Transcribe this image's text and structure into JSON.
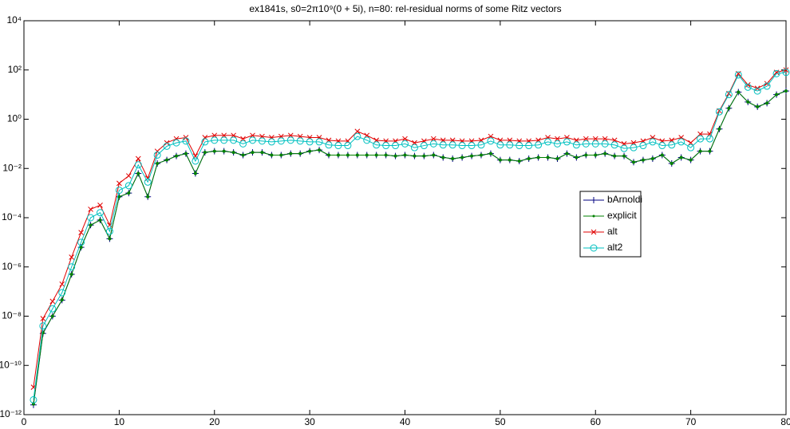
{
  "chart_data": {
    "type": "line",
    "title": "ex1841s, s0=2π10⁹(0 + 5i), n=80:  rel-residual norms of some Ritz vectors",
    "x": [
      1,
      2,
      3,
      4,
      5,
      6,
      7,
      8,
      9,
      10,
      11,
      12,
      13,
      14,
      15,
      16,
      17,
      18,
      19,
      20,
      21,
      22,
      23,
      24,
      25,
      26,
      27,
      28,
      29,
      30,
      31,
      32,
      33,
      34,
      35,
      36,
      37,
      38,
      39,
      40,
      41,
      42,
      43,
      44,
      45,
      46,
      47,
      48,
      49,
      50,
      51,
      52,
      53,
      54,
      55,
      56,
      57,
      58,
      59,
      60,
      61,
      62,
      63,
      64,
      65,
      66,
      67,
      68,
      69,
      70,
      71,
      72,
      73,
      74,
      75,
      76,
      77,
      78,
      79,
      80
    ],
    "xlim": [
      0,
      80
    ],
    "xticks": [
      0,
      10,
      20,
      30,
      40,
      50,
      60,
      70,
      80
    ],
    "ylim": [
      1e-12,
      10000
    ],
    "log_scale_y": true,
    "yticks": [
      {
        "value": 1e-12,
        "label": "10⁻¹²"
      },
      {
        "value": 1e-10,
        "label": "10⁻¹⁰"
      },
      {
        "value": 1e-08,
        "label": "10⁻⁸"
      },
      {
        "value": 1e-06,
        "label": "10⁻⁶"
      },
      {
        "value": 0.0001,
        "label": "10⁻⁴"
      },
      {
        "value": 0.01,
        "label": "10⁻²"
      },
      {
        "value": 1,
        "label": "10⁰"
      },
      {
        "value": 100,
        "label": "10²"
      },
      {
        "value": 10000,
        "label": "10⁴"
      }
    ],
    "legend": "right",
    "series": [
      {
        "name": "bArnoldi",
        "color": "#000080",
        "marker": "plus",
        "values": [
          2.5e-12,
          2e-09,
          1e-08,
          4.5e-08,
          5e-07,
          6.3e-06,
          5e-05,
          8e-05,
          1.4e-05,
          0.00071,
          0.001,
          0.0063,
          0.00071,
          0.016,
          0.022,
          0.032,
          0.04,
          0.0063,
          0.045,
          0.05,
          0.05,
          0.045,
          0.035,
          0.045,
          0.045,
          0.035,
          0.035,
          0.04,
          0.04,
          0.05,
          0.056,
          0.035,
          0.035,
          0.035,
          0.035,
          0.035,
          0.035,
          0.035,
          0.032,
          0.035,
          0.032,
          0.032,
          0.035,
          0.028,
          0.025,
          0.028,
          0.032,
          0.035,
          0.04,
          0.022,
          0.022,
          0.02,
          0.025,
          0.028,
          0.028,
          0.025,
          0.04,
          0.028,
          0.035,
          0.035,
          0.04,
          0.032,
          0.032,
          0.018,
          0.022,
          0.025,
          0.035,
          0.016,
          0.028,
          0.022,
          0.05,
          0.05,
          0.4,
          2.8,
          12.6,
          5,
          3.2,
          4.5,
          10,
          14
        ]
      },
      {
        "name": "explicit",
        "color": "#008000",
        "marker": "dot",
        "values": [
          2.7e-12,
          2.1e-09,
          1e-08,
          4.6e-08,
          5e-07,
          6.3e-06,
          5e-05,
          8e-05,
          1.4e-05,
          0.00071,
          0.001,
          0.0063,
          0.00071,
          0.016,
          0.022,
          0.032,
          0.04,
          0.0063,
          0.045,
          0.05,
          0.05,
          0.045,
          0.035,
          0.045,
          0.045,
          0.035,
          0.035,
          0.04,
          0.04,
          0.05,
          0.056,
          0.035,
          0.035,
          0.035,
          0.035,
          0.035,
          0.035,
          0.035,
          0.032,
          0.035,
          0.032,
          0.032,
          0.035,
          0.028,
          0.025,
          0.028,
          0.032,
          0.035,
          0.04,
          0.022,
          0.022,
          0.02,
          0.025,
          0.028,
          0.028,
          0.025,
          0.04,
          0.028,
          0.035,
          0.035,
          0.04,
          0.032,
          0.032,
          0.018,
          0.022,
          0.025,
          0.035,
          0.016,
          0.028,
          0.022,
          0.05,
          0.05,
          0.4,
          2.8,
          12.6,
          5,
          3.2,
          4.5,
          10,
          14
        ]
      },
      {
        "name": "alt",
        "color": "#e00000",
        "marker": "x",
        "values": [
          1.3e-11,
          8e-09,
          4e-08,
          2e-07,
          2.5e-06,
          2.5e-05,
          0.00022,
          0.00032,
          5e-05,
          0.0025,
          0.005,
          0.025,
          0.004,
          0.05,
          0.11,
          0.16,
          0.18,
          0.032,
          0.18,
          0.22,
          0.22,
          0.22,
          0.16,
          0.22,
          0.2,
          0.18,
          0.2,
          0.22,
          0.2,
          0.18,
          0.18,
          0.14,
          0.13,
          0.13,
          0.32,
          0.22,
          0.14,
          0.13,
          0.13,
          0.16,
          0.11,
          0.13,
          0.16,
          0.14,
          0.14,
          0.13,
          0.13,
          0.14,
          0.2,
          0.14,
          0.14,
          0.13,
          0.13,
          0.14,
          0.18,
          0.16,
          0.18,
          0.14,
          0.16,
          0.16,
          0.16,
          0.14,
          0.1,
          0.11,
          0.13,
          0.18,
          0.13,
          0.14,
          0.18,
          0.11,
          0.25,
          0.25,
          2.2,
          11,
          71,
          25,
          18,
          28,
          80,
          100
        ]
      },
      {
        "name": "alt2",
        "color": "#00c0c0",
        "marker": "circle",
        "values": [
          4e-12,
          4e-09,
          2e-08,
          9e-08,
          1e-06,
          1e-05,
          0.0001,
          0.00016,
          2.8e-05,
          0.0013,
          0.002,
          0.014,
          0.0028,
          0.035,
          0.08,
          0.11,
          0.13,
          0.02,
          0.12,
          0.14,
          0.14,
          0.14,
          0.1,
          0.14,
          0.13,
          0.12,
          0.13,
          0.14,
          0.13,
          0.12,
          0.12,
          0.09,
          0.085,
          0.085,
          0.2,
          0.14,
          0.09,
          0.085,
          0.085,
          0.1,
          0.07,
          0.085,
          0.1,
          0.09,
          0.09,
          0.085,
          0.085,
          0.09,
          0.13,
          0.09,
          0.09,
          0.085,
          0.085,
          0.09,
          0.12,
          0.1,
          0.12,
          0.09,
          0.1,
          0.1,
          0.1,
          0.09,
          0.065,
          0.07,
          0.085,
          0.12,
          0.085,
          0.09,
          0.12,
          0.07,
          0.16,
          0.16,
          2,
          10,
          63,
          20,
          14,
          22,
          71,
          80
        ]
      }
    ]
  }
}
